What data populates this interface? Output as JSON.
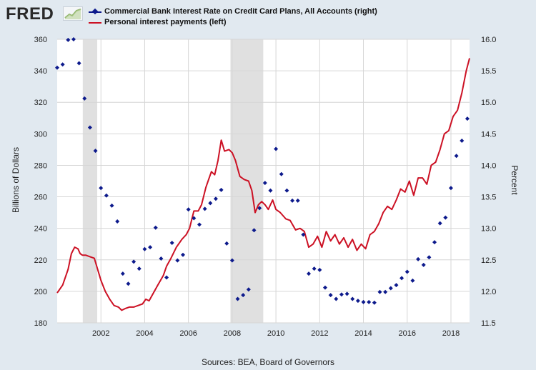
{
  "header": {
    "logo_text": "FRED",
    "logo_icon": "fred-chart-icon"
  },
  "legend": [
    {
      "label": "Commercial Bank Interest Rate on Credit Card Plans, All Accounts (right)",
      "color": "#0d1a8c",
      "marker": "diamond"
    },
    {
      "label": "Personal interest payments (left)",
      "color": "#cc1124",
      "marker": "line"
    }
  ],
  "footer": {
    "source": "Sources: BEA, Board of Governors"
  },
  "chart_data": {
    "type": "line",
    "title": "",
    "xlabel": "",
    "ylabel_left": "Billions of Dollars",
    "ylabel_right": "Percent",
    "xlim": [
      2000.0,
      2018.85
    ],
    "ylim_left": [
      180,
      360
    ],
    "ylim_right": [
      11.5,
      16.0
    ],
    "x_ticks": [
      "2002",
      "2004",
      "2006",
      "2008",
      "2010",
      "2012",
      "2014",
      "2016",
      "2018"
    ],
    "y_ticks_left": [
      "180",
      "200",
      "220",
      "240",
      "260",
      "280",
      "300",
      "320",
      "340",
      "360"
    ],
    "y_ticks_right": [
      "11.5",
      "12.0",
      "12.5",
      "13.0",
      "13.5",
      "14.0",
      "14.5",
      "15.0",
      "15.5",
      "16.0"
    ],
    "grid": true,
    "recessions": [
      [
        2001.17,
        2001.83
      ],
      [
        2007.92,
        2009.42
      ]
    ],
    "series": [
      {
        "name": "Personal interest payments (left)",
        "axis": "left",
        "style": "line",
        "color": "#cc1124",
        "x": [
          2000.0,
          2000.25,
          2000.5,
          2000.65,
          2000.8,
          2000.95,
          2001.05,
          2001.15,
          2001.3,
          2001.5,
          2001.7,
          2001.85,
          2002.0,
          2002.2,
          2002.4,
          2002.6,
          2002.8,
          2002.95,
          2003.1,
          2003.3,
          2003.5,
          2003.7,
          2003.9,
          2004.05,
          2004.2,
          2004.4,
          2004.6,
          2004.85,
          2005.0,
          2005.2,
          2005.45,
          2005.7,
          2005.9,
          2006.05,
          2006.25,
          2006.45,
          2006.6,
          2006.8,
          2006.95,
          2007.05,
          2007.2,
          2007.35,
          2007.5,
          2007.65,
          2007.85,
          2008.0,
          2008.15,
          2008.35,
          2008.55,
          2008.75,
          2008.9,
          2009.05,
          2009.2,
          2009.35,
          2009.5,
          2009.65,
          2009.85,
          2010.0,
          2010.2,
          2010.45,
          2010.65,
          2010.9,
          2011.1,
          2011.3,
          2011.5,
          2011.7,
          2011.9,
          2012.1,
          2012.3,
          2012.5,
          2012.7,
          2012.9,
          2013.1,
          2013.3,
          2013.5,
          2013.7,
          2013.9,
          2014.1,
          2014.3,
          2014.5,
          2014.7,
          2014.9,
          2015.1,
          2015.3,
          2015.5,
          2015.7,
          2015.9,
          2016.1,
          2016.3,
          2016.5,
          2016.7,
          2016.9,
          2017.1,
          2017.3,
          2017.5,
          2017.7,
          2017.9,
          2018.1,
          2018.3,
          2018.5,
          2018.7,
          2018.85
        ],
        "values": [
          199,
          204,
          214,
          224,
          228,
          227,
          224,
          223,
          223,
          222,
          221,
          214,
          207,
          200,
          195,
          191,
          190,
          188,
          189,
          190,
          190,
          191,
          192,
          195,
          194,
          199,
          204,
          210,
          216,
          221,
          228,
          233,
          236,
          240,
          251,
          251,
          255,
          266,
          272,
          276,
          274,
          283,
          296,
          289,
          290,
          288,
          283,
          273,
          271,
          270,
          264,
          250,
          255,
          257,
          255,
          252,
          258,
          252,
          250,
          246,
          245,
          239,
          240,
          238,
          228,
          230,
          235,
          228,
          238,
          232,
          236,
          230,
          234,
          228,
          233,
          226,
          230,
          227,
          236,
          238,
          243,
          250,
          254,
          252,
          258,
          265,
          263,
          270,
          261,
          272,
          272,
          268,
          280,
          282,
          290,
          300,
          302,
          311,
          315,
          326,
          340,
          348
        ]
      },
      {
        "name": "Commercial Bank Interest Rate on Credit Card Plans, All Accounts (right)",
        "axis": "right",
        "style": "markers",
        "color": "#0d1a8c",
        "x": [
          2000.0,
          2000.25,
          2000.5,
          2000.75,
          2001.0,
          2001.25,
          2001.5,
          2001.75,
          2002.0,
          2002.25,
          2002.5,
          2002.75,
          2003.0,
          2003.25,
          2003.5,
          2003.75,
          2004.0,
          2004.25,
          2004.5,
          2004.75,
          2005.0,
          2005.25,
          2005.5,
          2005.75,
          2006.0,
          2006.25,
          2006.5,
          2006.75,
          2007.0,
          2007.25,
          2007.5,
          2007.75,
          2008.0,
          2008.25,
          2008.5,
          2008.75,
          2009.0,
          2009.25,
          2009.5,
          2009.75,
          2010.0,
          2010.25,
          2010.5,
          2010.75,
          2011.0,
          2011.25,
          2011.5,
          2011.75,
          2012.0,
          2012.25,
          2012.5,
          2012.75,
          2013.0,
          2013.25,
          2013.5,
          2013.75,
          2014.0,
          2014.25,
          2014.5,
          2014.75,
          2015.0,
          2015.25,
          2015.5,
          2015.75,
          2016.0,
          2016.25,
          2016.5,
          2016.75,
          2017.0,
          2017.25,
          2017.5,
          2017.75,
          2018.0,
          2018.25,
          2018.5,
          2018.75
        ],
        "values": [
          15.55,
          15.6,
          15.99,
          16.0,
          15.62,
          15.06,
          14.6,
          14.23,
          13.64,
          13.52,
          13.36,
          13.11,
          12.28,
          12.12,
          12.47,
          12.36,
          12.67,
          12.7,
          13.01,
          12.52,
          12.22,
          12.77,
          12.49,
          12.58,
          13.3,
          13.16,
          13.06,
          13.31,
          13.4,
          13.47,
          13.61,
          12.76,
          12.49,
          11.88,
          11.94,
          12.03,
          12.97,
          13.32,
          13.72,
          13.6,
          14.26,
          13.86,
          13.6,
          13.44,
          13.44,
          12.9,
          12.28,
          12.36,
          12.34,
          12.06,
          11.94,
          11.88,
          11.95,
          11.96,
          11.88,
          11.85,
          11.83,
          11.83,
          11.82,
          11.99,
          11.99,
          12.05,
          12.1,
          12.21,
          12.31,
          12.17,
          12.51,
          12.42,
          12.54,
          12.78,
          13.08,
          13.17,
          13.64,
          14.15,
          14.39,
          14.74
        ]
      }
    ]
  }
}
